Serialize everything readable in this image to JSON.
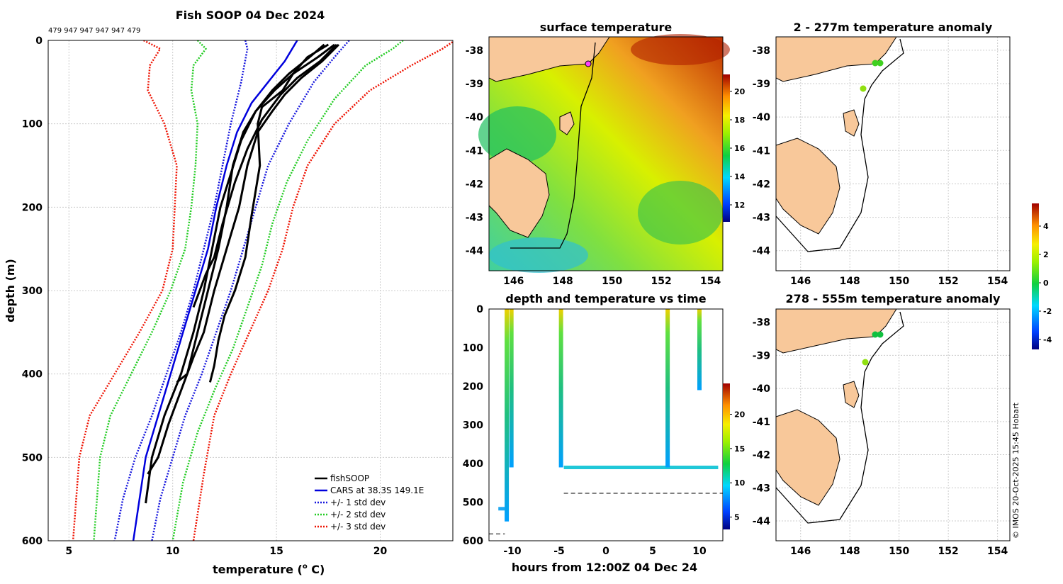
{
  "colors": {
    "fish": "#000000",
    "cars": "#0000dd",
    "std1": "#1515dd",
    "std2": "#22cc22",
    "std3": "#ee1100",
    "land": "#f8c89a",
    "grid": "#cccccc",
    "time_dash": "#000000"
  },
  "profile_panel": {
    "title": "Fish SOOP 04 Dec 2024",
    "counts_label": "479 947 947 947 947 479",
    "xlabel": "temperature (",
    "xlabel_sup": "o",
    "xlabel_end": " C)",
    "ylabel": "depth (m)",
    "legend": [
      "fishSOOP",
      "CARS at 38.3S 149.1E",
      "+/- 1 std dev",
      "+/- 2 std dev",
      "+/- 3 std dev"
    ]
  },
  "sst_panel": {
    "title": "surface temperature",
    "colorbar_ticks": [
      "12",
      "14",
      "16",
      "18",
      "20"
    ]
  },
  "time_panel": {
    "title": "depth and temperature vs time",
    "xlabel": "hours from 12:00Z 04 Dec 24",
    "colorbar_ticks": [
      "5",
      "10",
      "15",
      "20"
    ]
  },
  "anom_top": {
    "title": "2 - 277m temperature anomaly"
  },
  "anom_bot": {
    "title": "278 - 555m temperature anomaly"
  },
  "anomaly_colorbar": {
    "ticks": [
      "-4",
      "-2",
      "0",
      "2",
      "4"
    ]
  },
  "credit": "© IMOS 20-Oct-2025 15:45 Hobart",
  "map_x_ticks": [
    "146",
    "148",
    "150",
    "152",
    "154"
  ],
  "map_y_ticks": [
    "-38",
    "-39",
    "-40",
    "-41",
    "-42",
    "-43",
    "-44"
  ],
  "chart_data": [
    {
      "type": "line",
      "title": "Fish SOOP 04 Dec 2024",
      "xlabel": "temperature (o C)",
      "ylabel": "depth (m)",
      "xlim": [
        4,
        23.5
      ],
      "ylim": [
        600,
        0
      ],
      "xticks": [
        "5",
        "10",
        "15",
        "20"
      ],
      "yticks": [
        "0",
        "100",
        "200",
        "300",
        "400",
        "500",
        "600"
      ],
      "series": [
        {
          "name": "CARS at 38.3S 149.1E",
          "x": [
            16.0,
            15.4,
            14.6,
            13.8,
            13.1,
            12.6,
            12.1,
            11.7,
            11.1,
            10.5,
            9.9,
            9.3,
            8.7,
            8.1
          ],
          "y": [
            0,
            25,
            50,
            75,
            110,
            150,
            200,
            250,
            300,
            350,
            400,
            450,
            500,
            600
          ]
        },
        {
          "name": "+/- 1 std dev (low)",
          "x": [
            13.5,
            13.6,
            13.3,
            12.8,
            12.4,
            12.0,
            11.5,
            11.0,
            10.4,
            9.7,
            9.0,
            8.2,
            7.6,
            7.2
          ],
          "y": [
            0,
            10,
            50,
            100,
            150,
            200,
            250,
            300,
            350,
            400,
            450,
            500,
            550,
            600
          ]
        },
        {
          "name": "+/- 1 std dev (high)",
          "x": [
            18.5,
            17.8,
            16.8,
            15.6,
            14.6,
            14.0,
            13.4,
            12.8,
            12.1,
            11.4,
            10.6,
            10.0,
            9.4,
            9.0
          ],
          "y": [
            0,
            20,
            50,
            100,
            150,
            200,
            250,
            300,
            350,
            400,
            450,
            500,
            550,
            600
          ]
        },
        {
          "name": "+/- 2 std dev (low)",
          "x": [
            11.2,
            11.6,
            11.0,
            10.9,
            11.2,
            11.1,
            10.9,
            10.6,
            9.9,
            9.0,
            8.0,
            7.0,
            6.5,
            6.2
          ],
          "y": [
            0,
            10,
            30,
            60,
            100,
            150,
            200,
            250,
            300,
            350,
            400,
            450,
            500,
            600
          ]
        },
        {
          "name": "+/- 2 std dev (high)",
          "x": [
            21.1,
            20.6,
            19.3,
            17.8,
            16.5,
            15.5,
            14.8,
            14.3,
            13.6,
            12.9,
            12.0,
            11.2,
            10.5,
            10.0
          ],
          "y": [
            0,
            10,
            30,
            70,
            120,
            170,
            220,
            270,
            320,
            370,
            420,
            470,
            530,
            600
          ]
        },
        {
          "name": "+/- 3 std dev (low)",
          "x": [
            8.6,
            9.4,
            8.9,
            8.8,
            9.6,
            10.2,
            10.1,
            10.0,
            9.5,
            8.4,
            7.2,
            6.0,
            5.5,
            5.2
          ],
          "y": [
            0,
            10,
            30,
            60,
            100,
            150,
            200,
            250,
            300,
            350,
            400,
            450,
            500,
            600
          ]
        },
        {
          "name": "+/- 3 std dev (high)",
          "x": [
            23.6,
            23.0,
            21.5,
            19.5,
            17.8,
            16.5,
            15.8,
            15.3,
            14.6,
            13.7,
            12.8,
            12.0,
            11.5,
            11.0
          ],
          "y": [
            0,
            10,
            30,
            60,
            100,
            150,
            200,
            250,
            300,
            350,
            400,
            450,
            520,
            600
          ]
        },
        {
          "name": "fishSOOP cast 1",
          "x": [
            17.8,
            17.0,
            15.8,
            14.9,
            14.0,
            13.3,
            12.8,
            12.3,
            11.9,
            11.5,
            11.0,
            10.4,
            9.6,
            9.0,
            8.7
          ],
          "y": [
            5,
            20,
            40,
            60,
            85,
            120,
            160,
            200,
            250,
            300,
            350,
            400,
            450,
            500,
            555
          ]
        },
        {
          "name": "fishSOOP cast 2",
          "x": [
            18.0,
            17.2,
            16.2,
            15.4,
            14.8,
            14.1,
            13.6,
            13.2,
            12.6,
            12.0,
            11.5,
            11.0,
            10.4,
            9.8,
            9.3,
            8.8
          ],
          "y": [
            5,
            25,
            45,
            65,
            85,
            110,
            150,
            200,
            250,
            300,
            350,
            380,
            420,
            460,
            500,
            520
          ]
        },
        {
          "name": "fishSOOP cast 3",
          "x": [
            17.5,
            16.5,
            15.8,
            15.3,
            14.3,
            14.1,
            14.2,
            13.8,
            13.5,
            13.0,
            12.5,
            12.2,
            12.0,
            11.8
          ],
          "y": [
            5,
            20,
            40,
            60,
            80,
            100,
            150,
            210,
            260,
            300,
            330,
            360,
            390,
            410
          ]
        },
        {
          "name": "fishSOOP cast 4",
          "x": [
            17.3,
            16.6,
            15.6,
            14.8,
            14.0,
            13.4,
            12.9,
            12.6,
            12.2,
            11.7,
            11.2,
            10.7,
            10.2
          ],
          "y": [
            5,
            20,
            40,
            60,
            85,
            110,
            150,
            200,
            250,
            300,
            350,
            400,
            410
          ]
        },
        {
          "name": "fishSOOP cast 5",
          "x": [
            17.9,
            17.1,
            16.0,
            15.2,
            14.3,
            13.6,
            13.0,
            12.4,
            12.0,
            11.6,
            11.3,
            11.0
          ],
          "y": [
            5,
            25,
            45,
            65,
            95,
            130,
            170,
            220,
            260,
            280,
            300,
            320
          ]
        }
      ]
    },
    {
      "type": "scatter",
      "title": "depth and temperature vs time",
      "xlabel": "hours from 12:00Z 04 Dec 24",
      "ylabel": "",
      "xlim": [
        -12.5,
        12.5
      ],
      "ylim": [
        600,
        0
      ],
      "xticks": [
        "-10",
        "-5",
        "0",
        "5",
        "10"
      ],
      "yticks": [
        "0",
        "100",
        "200",
        "300",
        "400",
        "500",
        "600"
      ],
      "series": [
        {
          "name": "cast 1",
          "x": [
            -10.6,
            -10.6,
            -10.6
          ],
          "y": [
            0,
            270,
            550
          ]
        },
        {
          "name": "cast 2",
          "x": [
            -10.1,
            -10.1
          ],
          "y": [
            0,
            410
          ]
        },
        {
          "name": "cast 3",
          "x": [
            -4.8,
            -4.8
          ],
          "y": [
            0,
            410
          ]
        },
        {
          "name": "bottom track",
          "x": [
            -4.5,
            6.5,
            12.0
          ],
          "y": [
            410,
            410,
            410
          ]
        },
        {
          "name": "cast 4",
          "x": [
            6.6,
            6.6
          ],
          "y": [
            0,
            410
          ]
        },
        {
          "name": "cast 5",
          "x": [
            10.0,
            10.0
          ],
          "y": [
            0,
            210
          ]
        },
        {
          "name": "start segment",
          "x": [
            -11.5,
            -10.8
          ],
          "y": [
            517,
            517
          ]
        }
      ],
      "colorbar_range": [
        3,
        24
      ]
    }
  ]
}
